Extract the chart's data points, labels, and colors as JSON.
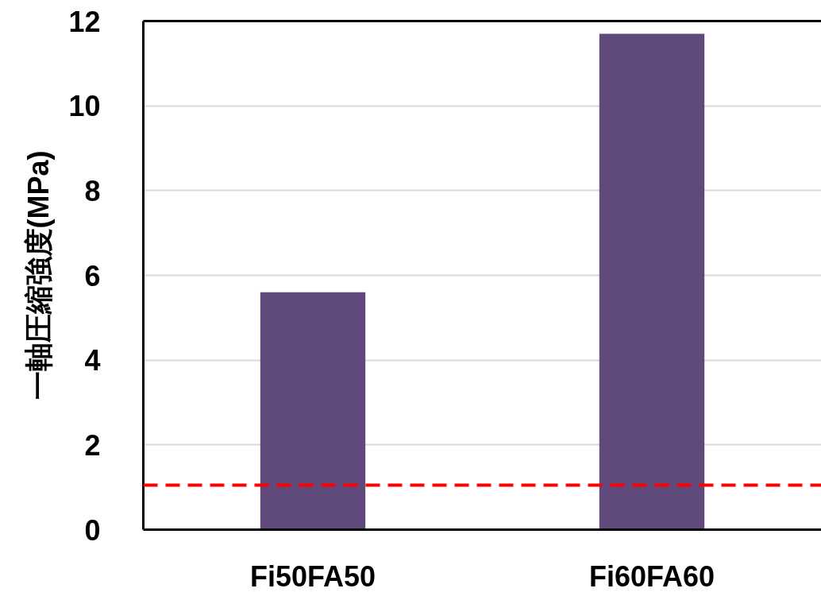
{
  "chart_data": {
    "type": "bar",
    "ylabel": "一軸圧縮強度(MPa)",
    "categories": [
      "Fi50FA50",
      "Fi60FA60"
    ],
    "series": [
      {
        "color": "#604a7b",
        "values": [
          5.6,
          11.7
        ]
      }
    ],
    "ylim": [
      0,
      12
    ],
    "yticks": [
      0,
      2,
      4,
      6,
      8,
      10,
      12
    ],
    "grid": "y",
    "ref_lines": [
      {
        "axis": "y",
        "value": 1.05,
        "color": "#ff0000",
        "line_style": "dashed"
      }
    ]
  }
}
